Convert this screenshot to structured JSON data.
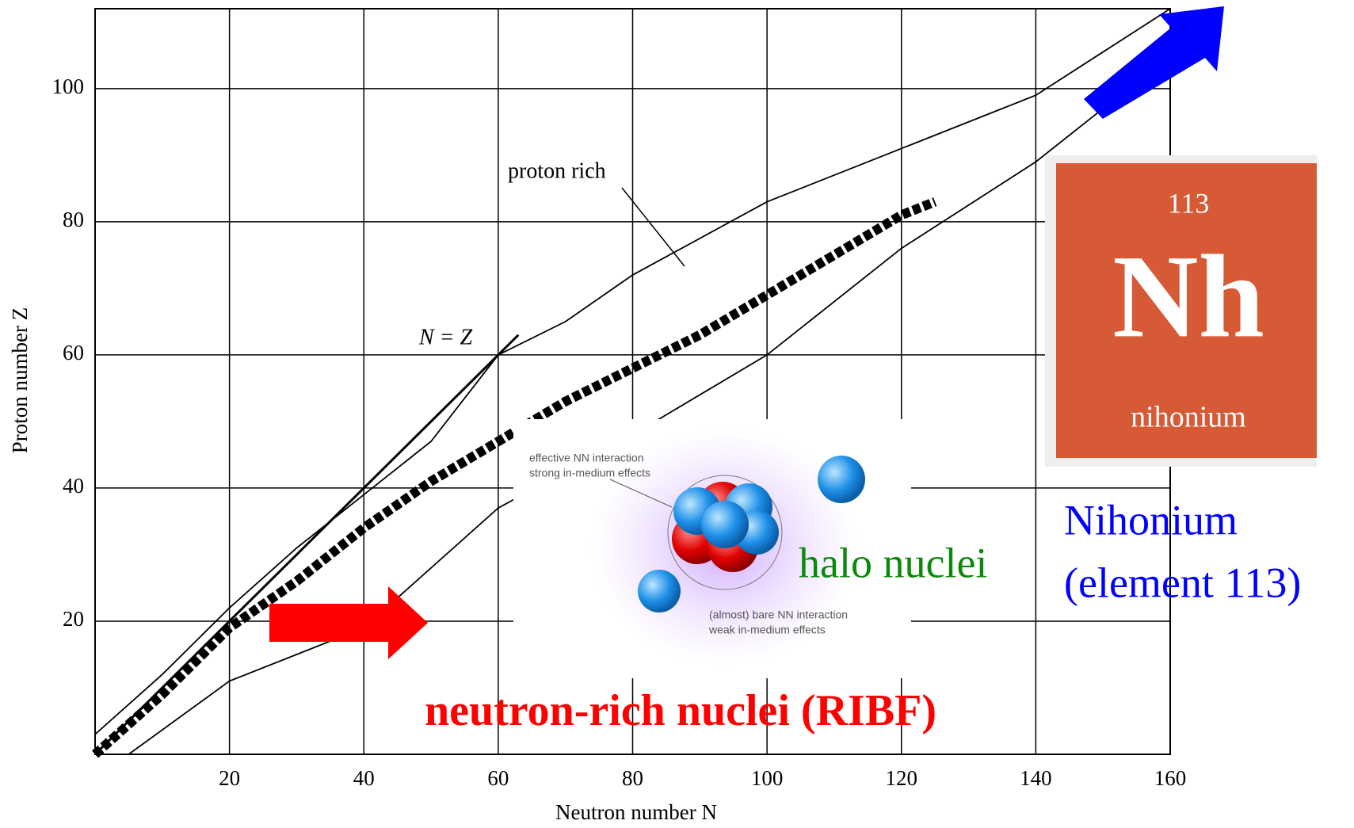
{
  "chart_data": {
    "type": "line",
    "xlabel": "Neutron number N",
    "ylabel": "Proton number Z",
    "xlim": [
      0,
      160
    ],
    "ylim": [
      0,
      112
    ],
    "xticks": [
      20,
      40,
      60,
      80,
      100,
      120,
      140,
      160
    ],
    "yticks": [
      20,
      40,
      60,
      80,
      100
    ],
    "grid": true,
    "series": [
      {
        "color": "#000000",
        "x": [
          0,
          63
        ],
        "values": [
          0,
          63
        ]
      },
      {
        "color": "#000000",
        "x": [
          0,
          10,
          20,
          30,
          40,
          50,
          60,
          70,
          80,
          90,
          100,
          110,
          120,
          125
        ],
        "values": [
          0,
          9,
          19,
          26,
          34,
          41,
          47,
          53,
          58,
          63,
          69,
          75,
          81,
          83
        ]
      },
      {
        "color": "#000000",
        "x": [
          0,
          10,
          20,
          30,
          40,
          50,
          60,
          70,
          80,
          100,
          120,
          140,
          160
        ],
        "values": [
          3,
          12,
          22,
          31,
          39,
          47,
          60,
          65,
          72,
          83,
          91,
          99,
          112
        ]
      },
      {
        "color": "#000000",
        "x": [
          5,
          20,
          40,
          60,
          80,
          100,
          120,
          140,
          150
        ],
        "values": [
          0,
          11,
          19,
          37,
          48,
          60,
          76,
          89,
          97
        ]
      }
    ],
    "annotations": {
      "proton_rich": "proton rich",
      "n_equals_z": "N = Z",
      "halo": "halo nuclei",
      "neutron_rich": "neutron-rich nuclei (RIBF)",
      "nihonium": [
        "Nihonium",
        "(element 113)"
      ],
      "inset_top": [
        "effective NN interaction",
        "strong in-medium effects"
      ],
      "inset_bottom": [
        "(almost) bare NN interaction",
        "weak in-medium effects"
      ]
    },
    "element_tile": {
      "number": "113",
      "symbol": "Nh",
      "name": "nihonium"
    }
  }
}
